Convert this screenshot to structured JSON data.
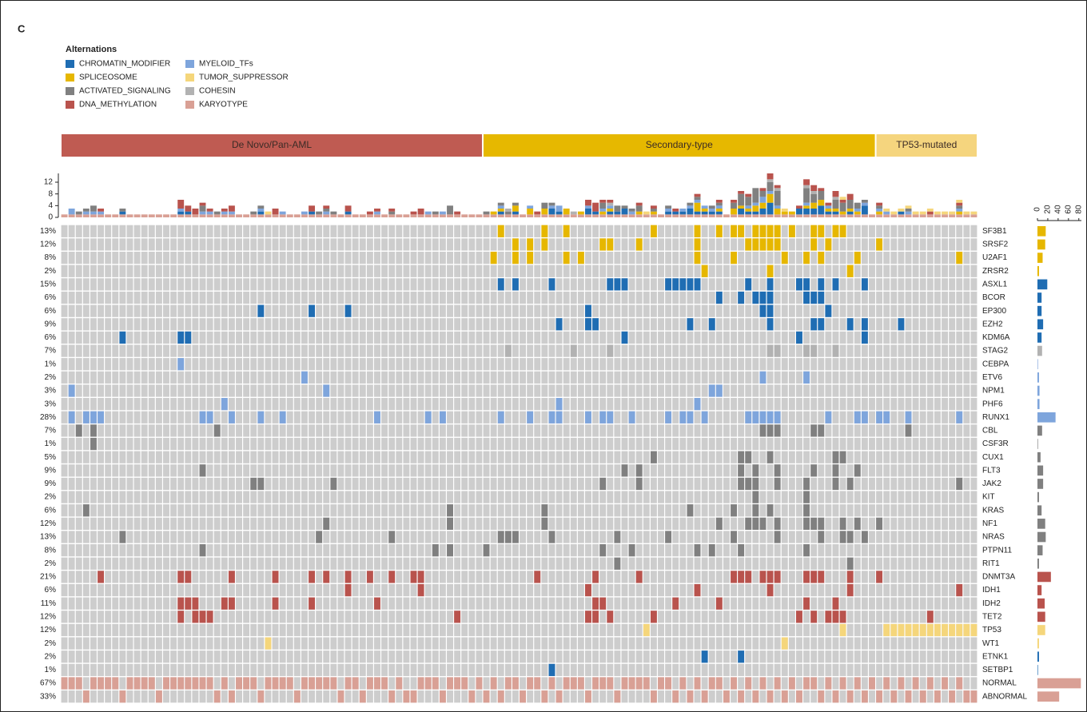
{
  "chart_data": {
    "type": "oncoprint",
    "panel_label": "C",
    "legend_title": "Alternations",
    "categories": [
      {
        "name": "CHROMATIN_MODIFIER",
        "color": "#1f6db3"
      },
      {
        "name": "SPLICEOSOME",
        "color": "#e6b700"
      },
      {
        "name": "ACTIVATED_SIGNALING",
        "color": "#808080"
      },
      {
        "name": "DNA_METHYLATION",
        "color": "#b9534d"
      },
      {
        "name": "MYELOID_TFs",
        "color": "#7ea5dc"
      },
      {
        "name": "TUMOR_SUPPRESSOR",
        "color": "#f5d67b"
      },
      {
        "name": "COHESIN",
        "color": "#b2b2b2"
      },
      {
        "name": "KARYOTYPE",
        "color": "#d9a095"
      }
    ],
    "groups": [
      {
        "name": "De Novo/Pan-AML",
        "color": "#bf5b52",
        "samples": 58
      },
      {
        "name": "Secondary-type",
        "color": "#e6b800",
        "samples": 54
      },
      {
        "name": "TP53-mutated",
        "color": "#f5d57e",
        "samples": 14
      }
    ],
    "cell_color": "#cdcdcd",
    "top_ylim": [
      0,
      15
    ],
    "top_yticks": [
      0,
      4,
      8,
      12
    ],
    "side_xlim": [
      0,
      85
    ],
    "side_xticks": [
      0,
      20,
      40,
      60,
      80
    ],
    "rows": [
      {
        "gene": "SF3B1",
        "pct": "13%",
        "category": "SPLICEOSOME",
        "count": 16,
        "mutated": [
          60,
          66,
          69,
          81,
          87,
          90,
          92,
          93,
          95,
          96,
          97,
          98,
          100,
          103,
          104,
          106,
          107
        ]
      },
      {
        "gene": "SRSF2",
        "pct": "12%",
        "category": "SPLICEOSOME",
        "count": 15,
        "mutated": [
          62,
          64,
          66,
          74,
          75,
          79,
          87,
          94,
          95,
          96,
          97,
          98,
          103,
          105,
          112
        ]
      },
      {
        "gene": "U2AF1",
        "pct": "8%",
        "category": "SPLICEOSOME",
        "count": 10,
        "mutated": [
          59,
          62,
          64,
          69,
          71,
          87,
          92,
          99,
          102,
          104,
          109,
          123
        ]
      },
      {
        "gene": "ZRSR2",
        "pct": "2%",
        "category": "SPLICEOSOME",
        "count": 3,
        "mutated": [
          88,
          97,
          108
        ]
      },
      {
        "gene": "ASXL1",
        "pct": "15%",
        "category": "CHROMATIN_MODIFIER",
        "count": 19,
        "mutated": [
          60,
          62,
          67,
          75,
          76,
          77,
          83,
          84,
          85,
          86,
          87,
          94,
          97,
          101,
          102,
          104,
          106,
          110
        ]
      },
      {
        "gene": "BCOR",
        "pct": "6%",
        "category": "CHROMATIN_MODIFIER",
        "count": 8,
        "mutated": [
          90,
          93,
          95,
          96,
          97,
          102,
          103,
          104
        ]
      },
      {
        "gene": "EP300",
        "pct": "6%",
        "category": "CHROMATIN_MODIFIER",
        "count": 8,
        "mutated": [
          27,
          34,
          39,
          72,
          96,
          97,
          105
        ]
      },
      {
        "gene": "EZH2",
        "pct": "9%",
        "category": "CHROMATIN_MODIFIER",
        "count": 11,
        "mutated": [
          68,
          72,
          73,
          86,
          89,
          97,
          103,
          104,
          108,
          110,
          115
        ]
      },
      {
        "gene": "KDM6A",
        "pct": "6%",
        "category": "CHROMATIN_MODIFIER",
        "count": 8,
        "mutated": [
          8,
          16,
          17,
          77,
          101,
          110
        ]
      },
      {
        "gene": "STAG2",
        "pct": "7%",
        "category": "COHESIN",
        "count": 9,
        "mutated": [
          61,
          70,
          75,
          97,
          98,
          102,
          103,
          106
        ]
      },
      {
        "gene": "CEBPA",
        "pct": "1%",
        "category": "MYELOID_TFs",
        "count": 1,
        "mutated": [
          16
        ]
      },
      {
        "gene": "ETV6",
        "pct": "2%",
        "category": "MYELOID_TFs",
        "count": 3,
        "mutated": [
          33,
          96,
          102
        ]
      },
      {
        "gene": "NPM1",
        "pct": "3%",
        "category": "MYELOID_TFs",
        "count": 4,
        "mutated": [
          1,
          36,
          89,
          90
        ]
      },
      {
        "gene": "PHF6",
        "pct": "3%",
        "category": "MYELOID_TFs",
        "count": 4,
        "mutated": [
          22,
          68,
          87
        ]
      },
      {
        "gene": "RUNX1",
        "pct": "28%",
        "category": "MYELOID_TFs",
        "count": 35,
        "mutated": [
          1,
          3,
          4,
          5,
          19,
          20,
          23,
          27,
          30,
          43,
          50,
          52,
          60,
          64,
          67,
          68,
          72,
          74,
          75,
          78,
          83,
          85,
          86,
          88,
          94,
          95,
          96,
          97,
          98,
          105,
          109,
          110,
          112,
          113,
          116,
          123
        ]
      },
      {
        "gene": "CBL",
        "pct": "7%",
        "category": "ACTIVATED_SIGNALING",
        "count": 9,
        "mutated": [
          2,
          4,
          21,
          96,
          97,
          98,
          103,
          104,
          116
        ]
      },
      {
        "gene": "CSF3R",
        "pct": "1%",
        "category": "ACTIVATED_SIGNALING",
        "count": 1,
        "mutated": [
          4
        ]
      },
      {
        "gene": "CUX1",
        "pct": "5%",
        "category": "ACTIVATED_SIGNALING",
        "count": 6,
        "mutated": [
          81,
          93,
          94,
          97,
          106,
          107
        ]
      },
      {
        "gene": "FLT3",
        "pct": "9%",
        "category": "ACTIVATED_SIGNALING",
        "count": 11,
        "mutated": [
          19,
          77,
          79,
          93,
          95,
          98,
          103,
          106,
          109
        ]
      },
      {
        "gene": "JAK2",
        "pct": "9%",
        "category": "ACTIVATED_SIGNALING",
        "count": 11,
        "mutated": [
          26,
          27,
          37,
          74,
          79,
          93,
          94,
          95,
          98,
          102,
          106,
          108,
          123
        ]
      },
      {
        "gene": "KIT",
        "pct": "2%",
        "category": "ACTIVATED_SIGNALING",
        "count": 3,
        "mutated": [
          95,
          102
        ]
      },
      {
        "gene": "KRAS",
        "pct": "6%",
        "category": "ACTIVATED_SIGNALING",
        "count": 8,
        "mutated": [
          3,
          53,
          66,
          86,
          92,
          95,
          97,
          102
        ]
      },
      {
        "gene": "NF1",
        "pct": "12%",
        "category": "ACTIVATED_SIGNALING",
        "count": 15,
        "mutated": [
          36,
          53,
          66,
          90,
          94,
          95,
          96,
          98,
          102,
          103,
          104,
          107,
          109,
          112
        ]
      },
      {
        "gene": "NRAS",
        "pct": "13%",
        "category": "ACTIVATED_SIGNALING",
        "count": 16,
        "mutated": [
          8,
          35,
          45,
          60,
          61,
          62,
          67,
          76,
          83,
          92,
          98,
          104,
          107,
          108,
          110
        ]
      },
      {
        "gene": "PTPN11",
        "pct": "8%",
        "category": "ACTIVATED_SIGNALING",
        "count": 10,
        "mutated": [
          19,
          51,
          53,
          58,
          74,
          78,
          87,
          89,
          93,
          102
        ]
      },
      {
        "gene": "RIT1",
        "pct": "2%",
        "category": "ACTIVATED_SIGNALING",
        "count": 3,
        "mutated": [
          76,
          108
        ]
      },
      {
        "gene": "DNMT3A",
        "pct": "21%",
        "category": "DNA_METHYLATION",
        "count": 26,
        "mutated": [
          5,
          16,
          17,
          23,
          29,
          34,
          36,
          39,
          42,
          45,
          48,
          49,
          65,
          73,
          79,
          92,
          93,
          94,
          96,
          97,
          98,
          102,
          103,
          104,
          108,
          112
        ]
      },
      {
        "gene": "IDH1",
        "pct": "6%",
        "category": "DNA_METHYLATION",
        "count": 8,
        "mutated": [
          39,
          49,
          72,
          87,
          97,
          108,
          123
        ]
      },
      {
        "gene": "IDH2",
        "pct": "11%",
        "category": "DNA_METHYLATION",
        "count": 14,
        "mutated": [
          16,
          17,
          18,
          22,
          23,
          29,
          34,
          43,
          73,
          74,
          84,
          90,
          102,
          106
        ]
      },
      {
        "gene": "TET2",
        "pct": "12%",
        "category": "DNA_METHYLATION",
        "count": 15,
        "mutated": [
          16,
          18,
          19,
          20,
          54,
          72,
          73,
          75,
          81,
          101,
          103,
          105,
          106,
          107,
          119
        ]
      },
      {
        "gene": "TP53",
        "pct": "12%",
        "category": "TUMOR_SUPPRESSOR",
        "count": 15,
        "mutated": [
          80,
          107,
          113,
          114,
          115,
          116,
          117,
          118,
          119,
          120,
          121,
          122,
          123,
          124,
          125
        ]
      },
      {
        "gene": "WT1",
        "pct": "2%",
        "category": "TUMOR_SUPPRESSOR",
        "count": 3,
        "mutated": [
          28,
          99
        ]
      },
      {
        "gene": "ETNK1",
        "pct": "2%",
        "category": "CHROMATIN_MODIFIER",
        "count": 3,
        "mutated": [
          88,
          93
        ]
      },
      {
        "gene": "SETBP1",
        "pct": "1%",
        "category": "CHROMATIN_MODIFIER",
        "count": 1,
        "mutated": [
          67
        ]
      },
      {
        "gene": "NORMAL",
        "pct": "67%",
        "category": "KARYOTYPE",
        "count": 84,
        "mutated": [
          0,
          1,
          2,
          4,
          5,
          6,
          7,
          9,
          10,
          11,
          12,
          14,
          15,
          16,
          17,
          18,
          19,
          20,
          22,
          24,
          25,
          26,
          28,
          29,
          30,
          31,
          33,
          34,
          35,
          36,
          37,
          39,
          40,
          42,
          43,
          44,
          46,
          49,
          50,
          51,
          53,
          54,
          55,
          57,
          59,
          61,
          62,
          64,
          65,
          67,
          69,
          70,
          71,
          73,
          74,
          75,
          77,
          78,
          79,
          80,
          82,
          83,
          85,
          87,
          89,
          90,
          92,
          94,
          96,
          98,
          100,
          102,
          103,
          105,
          107,
          109,
          111,
          113,
          115,
          117,
          119,
          121,
          123
        ]
      },
      {
        "gene": "ABNORMAL",
        "pct": "33%",
        "category": "KARYOTYPE",
        "count": 42,
        "mutated": [
          3,
          8,
          13,
          21,
          23,
          27,
          32,
          38,
          41,
          45,
          47,
          48,
          52,
          56,
          58,
          60,
          63,
          66,
          68,
          72,
          76,
          81,
          84,
          86,
          88,
          91,
          93,
          95,
          97,
          99,
          101,
          104,
          106,
          108,
          110,
          112,
          114,
          116,
          118,
          120,
          122,
          124,
          125
        ]
      }
    ]
  }
}
